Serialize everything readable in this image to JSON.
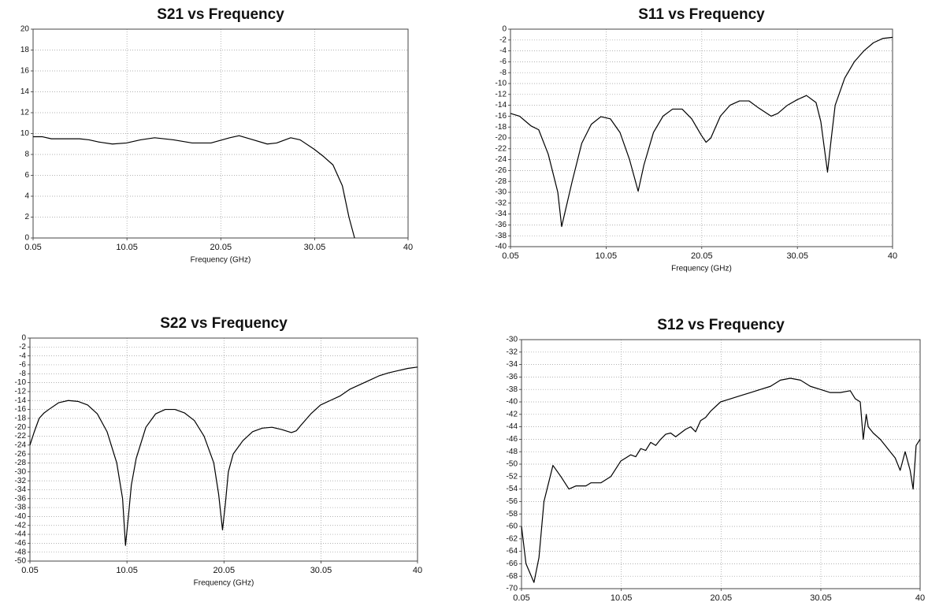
{
  "chart_data": [
    {
      "type": "line",
      "title": "S21 vs Frequency",
      "x_label": "Frequency (GHz)",
      "color": "#000000",
      "grid": true,
      "xlim": [
        0.05,
        40
      ],
      "xticks": [
        0.05,
        10.05,
        20.05,
        30.05,
        40
      ],
      "ylim": [
        0,
        20
      ],
      "yticks": [
        0,
        2,
        4,
        6,
        8,
        10,
        12,
        14,
        16,
        18,
        20
      ],
      "x": [
        0.05,
        1,
        2,
        3,
        4,
        5,
        6,
        7,
        8.5,
        10,
        11.5,
        13,
        15,
        17,
        19,
        21,
        22,
        23.5,
        25,
        26,
        27.5,
        28.5,
        30,
        31,
        32,
        33,
        33.7,
        34.3
      ],
      "values": [
        9.7,
        9.7,
        9.5,
        9.5,
        9.5,
        9.5,
        9.4,
        9.2,
        9.0,
        9.1,
        9.4,
        9.6,
        9.4,
        9.1,
        9.1,
        9.6,
        9.8,
        9.4,
        9.0,
        9.1,
        9.6,
        9.4,
        8.5,
        7.8,
        7.0,
        5.0,
        2.0,
        0
      ]
    },
    {
      "type": "line",
      "title": "S11 vs Frequency",
      "x_label": "Frequency (GHz)",
      "color": "#000000",
      "grid": true,
      "xlim": [
        0.05,
        40
      ],
      "xticks": [
        0.05,
        10.05,
        20.05,
        30.05,
        40
      ],
      "ylim": [
        -40,
        0
      ],
      "yticks": [
        0,
        -2,
        -4,
        -6,
        -8,
        -10,
        -12,
        -14,
        -16,
        -18,
        -20,
        -22,
        -24,
        -26,
        -28,
        -30,
        -32,
        -34,
        -36,
        -38,
        -40
      ],
      "x": [
        0.05,
        1,
        2,
        2.2,
        3,
        4,
        5,
        5.4,
        6.5,
        7.5,
        8.5,
        9.5,
        10.5,
        11.5,
        12.5,
        13.4,
        14,
        15,
        16,
        17,
        18,
        19,
        20,
        20.5,
        21,
        22,
        23,
        24,
        25,
        26,
        27.3,
        28,
        29,
        30,
        31,
        32,
        32.5,
        33.2,
        33.6,
        34,
        35,
        36,
        37,
        38,
        39,
        40
      ],
      "values": [
        -15.5,
        -16,
        -17.5,
        -17.8,
        -18.5,
        -23,
        -30,
        -36.3,
        -28,
        -21,
        -17.5,
        -16.1,
        -16.5,
        -19,
        -24,
        -29.8,
        -25,
        -19,
        -16,
        -14.7,
        -14.7,
        -16.5,
        -19.5,
        -20.8,
        -20,
        -16,
        -14,
        -13.2,
        -13.2,
        -14.5,
        -16,
        -15.5,
        -14,
        -13,
        -12.2,
        -13.5,
        -17,
        -26.3,
        -20,
        -14,
        -9,
        -6,
        -4,
        -2.5,
        -1.7,
        -1.5
      ]
    },
    {
      "type": "line",
      "title": "S22 vs Frequency",
      "x_label": "Frequency (GHz)",
      "color": "#000000",
      "grid": true,
      "xlim": [
        0.05,
        40
      ],
      "xticks": [
        0.05,
        10.05,
        20.05,
        30.05,
        40
      ],
      "ylim": [
        -50,
        0
      ],
      "yticks": [
        0,
        -2,
        -4,
        -6,
        -8,
        -10,
        -12,
        -14,
        -16,
        -18,
        -20,
        -22,
        -24,
        -26,
        -28,
        -30,
        -32,
        -34,
        -36,
        -38,
        -40,
        -42,
        -44,
        -46,
        -48,
        -50
      ],
      "x": [
        0.05,
        0.5,
        1,
        1.5,
        2,
        3,
        4,
        5,
        6,
        7,
        8,
        9,
        9.6,
        9.9,
        10.2,
        10.5,
        11,
        12,
        13,
        14,
        15,
        16,
        17,
        18,
        19,
        19.5,
        19.9,
        20.2,
        20.5,
        21,
        22,
        23,
        24,
        25,
        26,
        27,
        27.5,
        28,
        29,
        30,
        31,
        32,
        33,
        34,
        35,
        36,
        37,
        38,
        39,
        40
      ],
      "values": [
        -24,
        -21,
        -18,
        -16.8,
        -16,
        -14.5,
        -14,
        -14.2,
        -15,
        -17,
        -21,
        -28,
        -36,
        -46.5,
        -40,
        -33,
        -27,
        -20,
        -17,
        -16,
        -16,
        -16.8,
        -18.5,
        -22,
        -28,
        -35,
        -43,
        -37,
        -30,
        -26,
        -23,
        -21,
        -20.2,
        -20,
        -20.5,
        -21.2,
        -20.8,
        -19.5,
        -17,
        -15,
        -14,
        -13,
        -11.5,
        -10.5,
        -9.5,
        -8.5,
        -7.8,
        -7.3,
        -6.8,
        -6.5
      ]
    },
    {
      "type": "line",
      "title": "S12 vs Frequency",
      "x_label": "Frequency (GHz)",
      "color": "#000000",
      "grid": true,
      "xlim": [
        0.05,
        40
      ],
      "xticks": [
        0.05,
        10.05,
        20.05,
        30.05,
        40
      ],
      "ylim": [
        -70,
        -30
      ],
      "yticks": [
        -30,
        -32,
        -34,
        -36,
        -38,
        -40,
        -42,
        -44,
        -46,
        -48,
        -50,
        -52,
        -54,
        -56,
        -58,
        -60,
        -62,
        -64,
        -66,
        -68,
        -70
      ],
      "x": [
        0.05,
        0.5,
        1.3,
        1.8,
        2.3,
        3.2,
        4,
        4.8,
        5.5,
        6.5,
        7,
        8,
        9,
        10,
        10.5,
        11,
        11.5,
        12,
        12.5,
        13,
        13.5,
        14,
        14.5,
        15,
        15.5,
        16,
        16.5,
        17,
        17.5,
        18,
        18.5,
        19,
        20,
        21,
        22,
        23,
        24,
        25,
        26,
        27,
        28,
        29,
        30,
        31,
        32,
        33,
        33.5,
        34,
        34.3,
        34.6,
        34.8,
        35.3,
        36,
        36.5,
        37,
        37.5,
        38,
        38.5,
        39,
        39.3,
        39.6,
        40
      ],
      "values": [
        -60,
        -66,
        -69,
        -65,
        -56,
        -50.2,
        -52,
        -54,
        -53.5,
        -53.5,
        -53,
        -53,
        -52,
        -49.5,
        -49,
        -48.5,
        -48.8,
        -47.5,
        -47.8,
        -46.5,
        -47,
        -46,
        -45.2,
        -45,
        -45.6,
        -45,
        -44.4,
        -44,
        -44.8,
        -43,
        -42.5,
        -41.5,
        -40,
        -39.5,
        -39,
        -38.5,
        -38,
        -37.5,
        -36.5,
        -36.2,
        -36.5,
        -37.5,
        -38,
        -38.5,
        -38.5,
        -38.2,
        -39.5,
        -40,
        -46,
        -42,
        -44,
        -45,
        -46,
        -47,
        -48,
        -49,
        -51,
        -48,
        -51,
        -54,
        -47,
        -46
      ]
    }
  ]
}
